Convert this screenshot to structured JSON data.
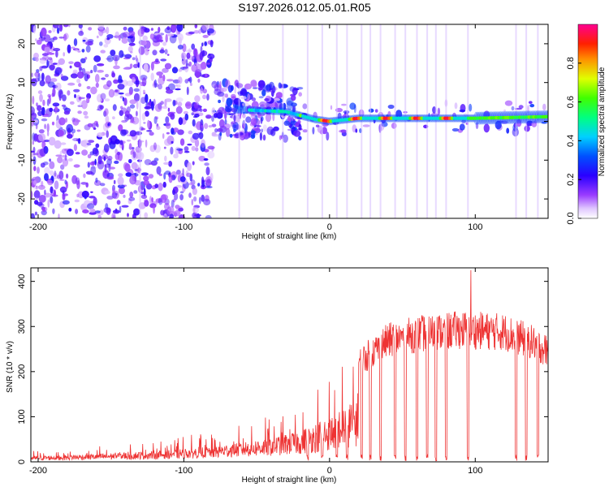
{
  "title": "S197.2026.012.05.01.R05",
  "chart_data": [
    {
      "type": "heatmap",
      "name": "spectrogram",
      "xlabel": "Height of straight line (km)",
      "ylabel": "Frequency (Hz)",
      "xlim": [
        -205,
        150
      ],
      "ylim": [
        -25,
        25
      ],
      "xticks": [
        -200,
        -100,
        0,
        100
      ],
      "yticks": [
        -20,
        -10,
        0,
        10,
        20
      ],
      "ridge": {
        "description_points": [
          {
            "x": -60,
            "freq": 3.0
          },
          {
            "x": -30,
            "freq": 2.5
          },
          {
            "x": -10,
            "freq": 0.5
          },
          {
            "x": 0,
            "freq": 0.0
          },
          {
            "x": 20,
            "freq": 0.8
          },
          {
            "x": 100,
            "freq": 0.8
          },
          {
            "x": 150,
            "freq": 1.2
          }
        ]
      },
      "colorbar": {
        "label": "Normalized spectral amplitude",
        "range": [
          0.0,
          1.0
        ],
        "ticks": [
          "0.0",
          "0.2",
          "0.4",
          "0.6",
          "0.8"
        ],
        "tick_values": [
          0.0,
          0.2,
          0.4,
          0.6,
          0.8
        ]
      }
    },
    {
      "type": "line",
      "name": "snr",
      "xlabel": "Height of straight line (km)",
      "ylabel": "SNR (10 * v/v)",
      "xlim": [
        -205,
        150
      ],
      "ylim": [
        0,
        430
      ],
      "xticks": [
        -200,
        -100,
        0,
        100
      ],
      "yticks": [
        0,
        100,
        200,
        300,
        400
      ],
      "color": "#ee3333",
      "envelope": [
        {
          "x": -205,
          "y": 20
        },
        {
          "x": -160,
          "y": 28
        },
        {
          "x": -120,
          "y": 38
        },
        {
          "x": -80,
          "y": 55
        },
        {
          "x": -40,
          "y": 85
        },
        {
          "x": -20,
          "y": 110
        },
        {
          "x": 0,
          "y": 160
        },
        {
          "x": 20,
          "y": 230
        },
        {
          "x": 40,
          "y": 280
        },
        {
          "x": 60,
          "y": 295
        },
        {
          "x": 90,
          "y": 305
        },
        {
          "x": 120,
          "y": 300
        },
        {
          "x": 140,
          "y": 275
        },
        {
          "x": 150,
          "y": 255
        }
      ],
      "dropouts_x": [
        -15,
        -5,
        5,
        12,
        22,
        28,
        35,
        45,
        52,
        60,
        67,
        73,
        80,
        95,
        128,
        135,
        143
      ],
      "peak": {
        "x": 97,
        "y": 425
      }
    }
  ]
}
